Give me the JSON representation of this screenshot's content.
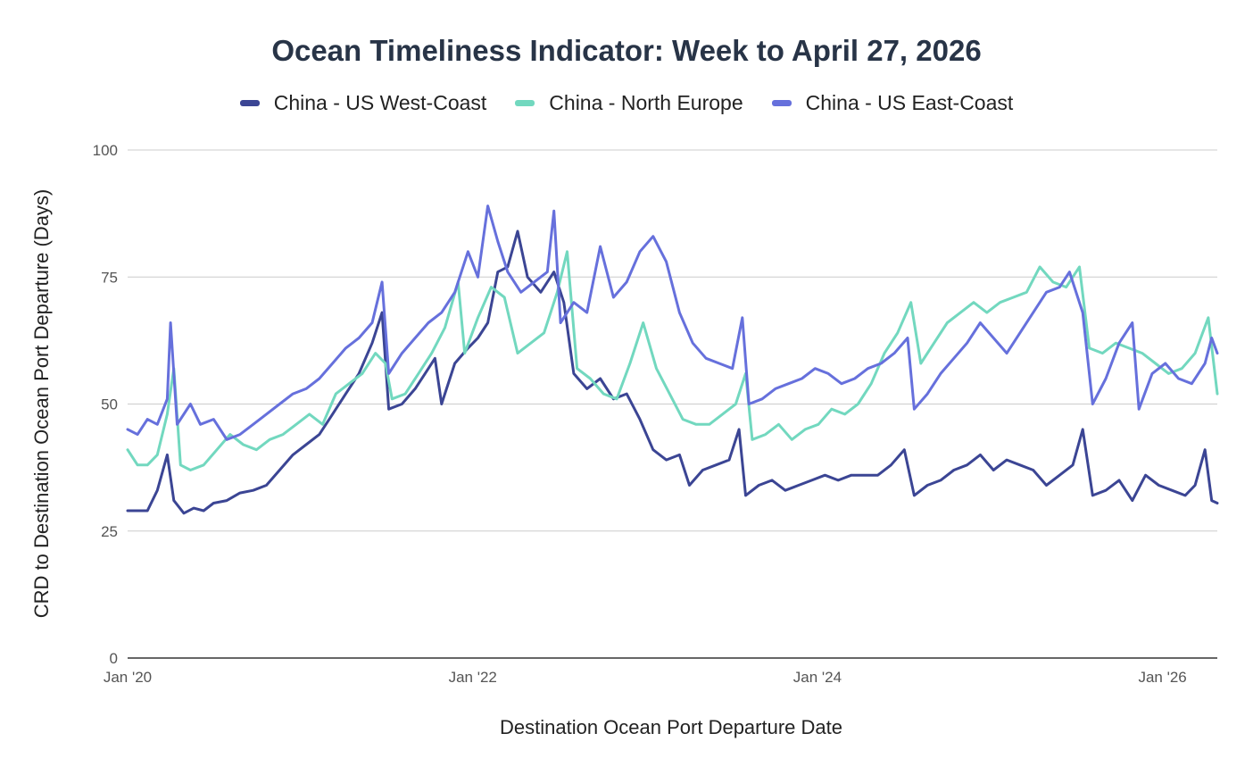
{
  "colors": {
    "background": "#ffffff",
    "grid": "#cccccc",
    "axis": "#333333",
    "tick_text": "#555555",
    "title_text": "#283447"
  },
  "chart_data": {
    "type": "line",
    "title": "Ocean Timeliness Indicator: Week to April 27, 2026",
    "xlabel": "Destination Ocean Port Departure Date",
    "ylabel": "CRD to Destination Ocean Port Departure (Days)",
    "xlim": [
      "2020-01-01",
      "2026-04-27"
    ],
    "ylim": [
      0,
      100
    ],
    "y_ticks": [
      0,
      25,
      50,
      75,
      100
    ],
    "x_ticks": [
      {
        "date": "2020-01-01",
        "label": "Jan '20"
      },
      {
        "date": "2022-01-01",
        "label": "Jan '22"
      },
      {
        "date": "2024-01-01",
        "label": "Jan '24"
      },
      {
        "date": "2026-01-01",
        "label": "Jan '26"
      }
    ],
    "grid": "horizontal",
    "legend_position": "top",
    "series": [
      {
        "name": "China - US West-Coast",
        "color": "#3b4594",
        "points": [
          [
            "2020-01-01",
            29
          ],
          [
            "2020-01-22",
            29
          ],
          [
            "2020-02-12",
            29
          ],
          [
            "2020-03-04",
            33
          ],
          [
            "2020-03-25",
            40
          ],
          [
            "2020-04-08",
            31
          ],
          [
            "2020-04-29",
            28.5
          ],
          [
            "2020-05-20",
            29.5
          ],
          [
            "2020-06-10",
            29
          ],
          [
            "2020-07-01",
            30.5
          ],
          [
            "2020-07-29",
            31
          ],
          [
            "2020-08-26",
            32.5
          ],
          [
            "2020-09-23",
            33
          ],
          [
            "2020-10-21",
            34
          ],
          [
            "2020-11-18",
            37
          ],
          [
            "2020-12-16",
            40
          ],
          [
            "2021-01-13",
            42
          ],
          [
            "2021-02-10",
            44
          ],
          [
            "2021-03-10",
            48
          ],
          [
            "2021-04-07",
            52
          ],
          [
            "2021-05-05",
            56
          ],
          [
            "2021-06-02",
            62
          ],
          [
            "2021-06-23",
            68
          ],
          [
            "2021-07-07",
            49
          ],
          [
            "2021-08-04",
            50
          ],
          [
            "2021-09-01",
            53
          ],
          [
            "2021-09-22",
            56
          ],
          [
            "2021-10-13",
            59
          ],
          [
            "2021-10-27",
            50
          ],
          [
            "2021-11-24",
            58
          ],
          [
            "2021-12-22",
            61
          ],
          [
            "2022-01-12",
            63
          ],
          [
            "2022-02-02",
            66
          ],
          [
            "2022-02-23",
            76
          ],
          [
            "2022-03-16",
            77
          ],
          [
            "2022-04-06",
            84
          ],
          [
            "2022-04-27",
            75
          ],
          [
            "2022-05-25",
            72
          ],
          [
            "2022-06-22",
            76
          ],
          [
            "2022-07-13",
            70
          ],
          [
            "2022-08-03",
            56
          ],
          [
            "2022-08-31",
            53
          ],
          [
            "2022-09-28",
            55
          ],
          [
            "2022-10-26",
            51
          ],
          [
            "2022-11-23",
            52
          ],
          [
            "2022-12-21",
            47
          ],
          [
            "2023-01-18",
            41
          ],
          [
            "2023-02-15",
            39
          ],
          [
            "2023-03-15",
            40
          ],
          [
            "2023-04-05",
            34
          ],
          [
            "2023-05-03",
            37
          ],
          [
            "2023-05-31",
            38
          ],
          [
            "2023-06-28",
            39
          ],
          [
            "2023-07-19",
            45
          ],
          [
            "2023-08-02",
            32
          ],
          [
            "2023-08-30",
            34
          ],
          [
            "2023-09-27",
            35
          ],
          [
            "2023-10-25",
            33
          ],
          [
            "2023-11-22",
            34
          ],
          [
            "2023-12-20",
            35
          ],
          [
            "2024-01-17",
            36
          ],
          [
            "2024-02-14",
            35
          ],
          [
            "2024-03-13",
            36
          ],
          [
            "2024-04-10",
            36
          ],
          [
            "2024-05-08",
            36
          ],
          [
            "2024-06-05",
            38
          ],
          [
            "2024-07-03",
            41
          ],
          [
            "2024-07-24",
            32
          ],
          [
            "2024-08-21",
            34
          ],
          [
            "2024-09-18",
            35
          ],
          [
            "2024-10-16",
            37
          ],
          [
            "2024-11-13",
            38
          ],
          [
            "2024-12-11",
            40
          ],
          [
            "2025-01-08",
            37
          ],
          [
            "2025-02-05",
            39
          ],
          [
            "2025-03-05",
            38
          ],
          [
            "2025-04-02",
            37
          ],
          [
            "2025-04-30",
            34
          ],
          [
            "2025-05-28",
            36
          ],
          [
            "2025-06-25",
            38
          ],
          [
            "2025-07-16",
            45
          ],
          [
            "2025-08-06",
            32
          ],
          [
            "2025-09-03",
            33
          ],
          [
            "2025-10-01",
            35
          ],
          [
            "2025-10-29",
            31
          ],
          [
            "2025-11-26",
            36
          ],
          [
            "2025-12-24",
            34
          ],
          [
            "2026-01-21",
            33
          ],
          [
            "2026-02-18",
            32
          ],
          [
            "2026-03-11",
            34
          ],
          [
            "2026-04-01",
            41
          ],
          [
            "2026-04-15",
            31
          ],
          [
            "2026-04-27",
            30.5
          ]
        ]
      },
      {
        "name": "China - North Europe",
        "color": "#72d8bf",
        "points": [
          [
            "2020-01-01",
            41
          ],
          [
            "2020-01-22",
            38
          ],
          [
            "2020-02-12",
            38
          ],
          [
            "2020-03-04",
            40
          ],
          [
            "2020-03-25",
            48
          ],
          [
            "2020-04-08",
            57
          ],
          [
            "2020-04-22",
            38
          ],
          [
            "2020-05-13",
            37
          ],
          [
            "2020-06-10",
            38
          ],
          [
            "2020-07-08",
            41
          ],
          [
            "2020-08-05",
            44
          ],
          [
            "2020-09-02",
            42
          ],
          [
            "2020-09-30",
            41
          ],
          [
            "2020-10-28",
            43
          ],
          [
            "2020-11-25",
            44
          ],
          [
            "2020-12-23",
            46
          ],
          [
            "2021-01-20",
            48
          ],
          [
            "2021-02-17",
            46
          ],
          [
            "2021-03-17",
            52
          ],
          [
            "2021-04-14",
            54
          ],
          [
            "2021-05-12",
            56
          ],
          [
            "2021-06-09",
            60
          ],
          [
            "2021-06-30",
            58
          ],
          [
            "2021-07-14",
            51
          ],
          [
            "2021-08-11",
            52
          ],
          [
            "2021-09-08",
            56
          ],
          [
            "2021-10-06",
            60
          ],
          [
            "2021-11-03",
            65
          ],
          [
            "2021-12-01",
            74
          ],
          [
            "2021-12-15",
            60
          ],
          [
            "2022-01-12",
            67
          ],
          [
            "2022-02-09",
            73
          ],
          [
            "2022-03-09",
            71
          ],
          [
            "2022-04-06",
            60
          ],
          [
            "2022-05-04",
            62
          ],
          [
            "2022-06-01",
            64
          ],
          [
            "2022-06-29",
            72
          ],
          [
            "2022-07-20",
            80
          ],
          [
            "2022-08-10",
            57
          ],
          [
            "2022-09-07",
            55
          ],
          [
            "2022-10-05",
            52
          ],
          [
            "2022-11-02",
            51
          ],
          [
            "2022-11-30",
            58
          ],
          [
            "2022-12-28",
            66
          ],
          [
            "2023-01-25",
            57
          ],
          [
            "2023-02-22",
            52
          ],
          [
            "2023-03-22",
            47
          ],
          [
            "2023-04-19",
            46
          ],
          [
            "2023-05-17",
            46
          ],
          [
            "2023-06-14",
            48
          ],
          [
            "2023-07-12",
            50
          ],
          [
            "2023-08-02",
            56
          ],
          [
            "2023-08-16",
            43
          ],
          [
            "2023-09-13",
            44
          ],
          [
            "2023-10-11",
            46
          ],
          [
            "2023-11-08",
            43
          ],
          [
            "2023-12-06",
            45
          ],
          [
            "2024-01-03",
            46
          ],
          [
            "2024-01-31",
            49
          ],
          [
            "2024-02-28",
            48
          ],
          [
            "2024-03-27",
            50
          ],
          [
            "2024-04-24",
            54
          ],
          [
            "2024-05-22",
            60
          ],
          [
            "2024-06-19",
            64
          ],
          [
            "2024-07-17",
            70
          ],
          [
            "2024-08-07",
            58
          ],
          [
            "2024-09-04",
            62
          ],
          [
            "2024-10-02",
            66
          ],
          [
            "2024-10-30",
            68
          ],
          [
            "2024-11-27",
            70
          ],
          [
            "2024-12-25",
            68
          ],
          [
            "2025-01-22",
            70
          ],
          [
            "2025-02-19",
            71
          ],
          [
            "2025-03-19",
            72
          ],
          [
            "2025-04-16",
            77
          ],
          [
            "2025-05-14",
            74
          ],
          [
            "2025-06-11",
            73
          ],
          [
            "2025-07-09",
            77
          ],
          [
            "2025-07-30",
            61
          ],
          [
            "2025-08-27",
            60
          ],
          [
            "2025-09-24",
            62
          ],
          [
            "2025-10-22",
            61
          ],
          [
            "2025-11-19",
            60
          ],
          [
            "2025-12-17",
            58
          ],
          [
            "2026-01-14",
            56
          ],
          [
            "2026-02-11",
            57
          ],
          [
            "2026-03-11",
            60
          ],
          [
            "2026-04-08",
            67
          ],
          [
            "2026-04-27",
            52
          ]
        ]
      },
      {
        "name": "China - US East-Coast",
        "color": "#6670dc",
        "points": [
          [
            "2020-01-01",
            45
          ],
          [
            "2020-01-22",
            44
          ],
          [
            "2020-02-12",
            47
          ],
          [
            "2020-03-04",
            46
          ],
          [
            "2020-03-25",
            51
          ],
          [
            "2020-04-01",
            66
          ],
          [
            "2020-04-15",
            46
          ],
          [
            "2020-05-13",
            50
          ],
          [
            "2020-06-03",
            46
          ],
          [
            "2020-07-01",
            47
          ],
          [
            "2020-07-29",
            43
          ],
          [
            "2020-08-26",
            44
          ],
          [
            "2020-09-23",
            46
          ],
          [
            "2020-10-21",
            48
          ],
          [
            "2020-11-18",
            50
          ],
          [
            "2020-12-16",
            52
          ],
          [
            "2021-01-13",
            53
          ],
          [
            "2021-02-10",
            55
          ],
          [
            "2021-03-10",
            58
          ],
          [
            "2021-04-07",
            61
          ],
          [
            "2021-05-05",
            63
          ],
          [
            "2021-06-02",
            66
          ],
          [
            "2021-06-23",
            74
          ],
          [
            "2021-07-07",
            56
          ],
          [
            "2021-08-04",
            60
          ],
          [
            "2021-09-01",
            63
          ],
          [
            "2021-09-29",
            66
          ],
          [
            "2021-10-27",
            68
          ],
          [
            "2021-11-24",
            72
          ],
          [
            "2021-12-22",
            80
          ],
          [
            "2022-01-12",
            75
          ],
          [
            "2022-02-02",
            89
          ],
          [
            "2022-02-23",
            82
          ],
          [
            "2022-03-16",
            76
          ],
          [
            "2022-04-13",
            72
          ],
          [
            "2022-05-11",
            74
          ],
          [
            "2022-06-08",
            76
          ],
          [
            "2022-06-22",
            88
          ],
          [
            "2022-07-06",
            66
          ],
          [
            "2022-08-03",
            70
          ],
          [
            "2022-08-31",
            68
          ],
          [
            "2022-09-28",
            81
          ],
          [
            "2022-10-26",
            71
          ],
          [
            "2022-11-23",
            74
          ],
          [
            "2022-12-21",
            80
          ],
          [
            "2023-01-18",
            83
          ],
          [
            "2023-02-15",
            78
          ],
          [
            "2023-03-15",
            68
          ],
          [
            "2023-04-12",
            62
          ],
          [
            "2023-05-10",
            59
          ],
          [
            "2023-06-07",
            58
          ],
          [
            "2023-07-05",
            57
          ],
          [
            "2023-07-26",
            67
          ],
          [
            "2023-08-09",
            50
          ],
          [
            "2023-09-06",
            51
          ],
          [
            "2023-10-04",
            53
          ],
          [
            "2023-11-01",
            54
          ],
          [
            "2023-11-29",
            55
          ],
          [
            "2023-12-27",
            57
          ],
          [
            "2024-01-24",
            56
          ],
          [
            "2024-02-21",
            54
          ],
          [
            "2024-03-20",
            55
          ],
          [
            "2024-04-17",
            57
          ],
          [
            "2024-05-15",
            58
          ],
          [
            "2024-06-12",
            60
          ],
          [
            "2024-07-10",
            63
          ],
          [
            "2024-07-24",
            49
          ],
          [
            "2024-08-21",
            52
          ],
          [
            "2024-09-18",
            56
          ],
          [
            "2024-10-16",
            59
          ],
          [
            "2024-11-13",
            62
          ],
          [
            "2024-12-11",
            66
          ],
          [
            "2025-01-08",
            63
          ],
          [
            "2025-02-05",
            60
          ],
          [
            "2025-03-05",
            64
          ],
          [
            "2025-04-02",
            68
          ],
          [
            "2025-04-30",
            72
          ],
          [
            "2025-05-28",
            73
          ],
          [
            "2025-06-18",
            76
          ],
          [
            "2025-07-16",
            68
          ],
          [
            "2025-08-06",
            50
          ],
          [
            "2025-09-03",
            55
          ],
          [
            "2025-10-01",
            62
          ],
          [
            "2025-10-29",
            66
          ],
          [
            "2025-11-12",
            49
          ],
          [
            "2025-12-10",
            56
          ],
          [
            "2026-01-07",
            58
          ],
          [
            "2026-02-04",
            55
          ],
          [
            "2026-03-04",
            54
          ],
          [
            "2026-04-01",
            58
          ],
          [
            "2026-04-15",
            63
          ],
          [
            "2026-04-27",
            60
          ]
        ]
      }
    ]
  }
}
